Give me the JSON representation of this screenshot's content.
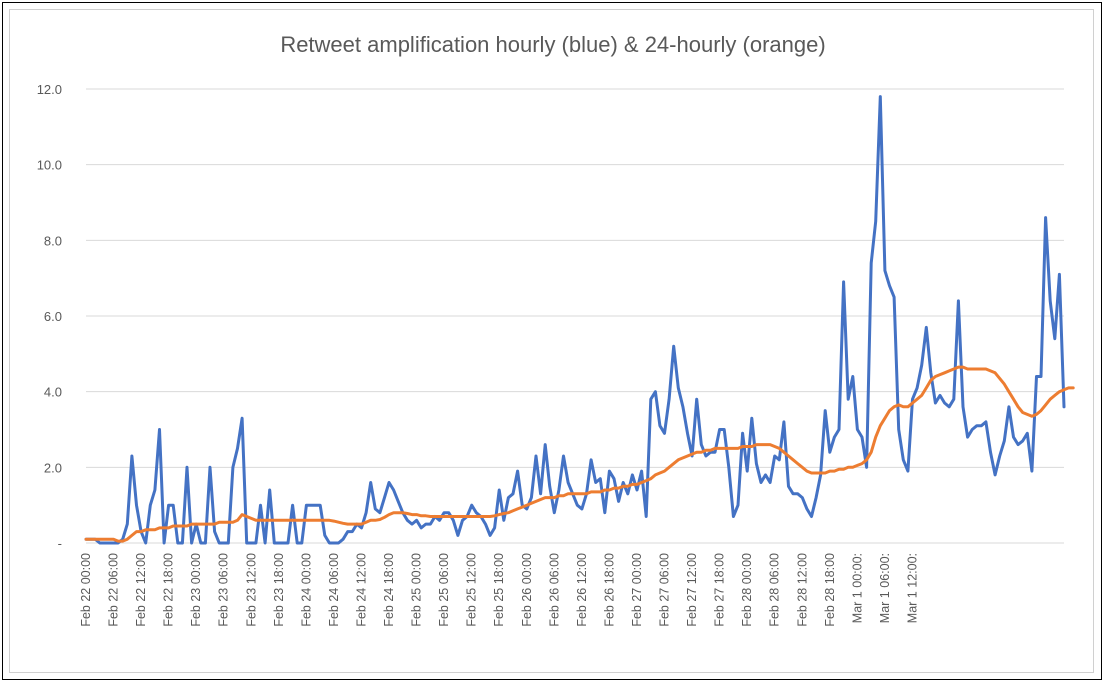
{
  "chart_data": {
    "type": "line",
    "title": "Retweet amplification hourly (blue) & 24-hourly (orange)",
    "xlabel": "",
    "ylabel": "",
    "ylim": [
      0,
      12
    ],
    "yticks": [
      0,
      2,
      4,
      6,
      8,
      10,
      12
    ],
    "ytick_labels": [
      "-",
      "2.0",
      "4.0",
      "6.0",
      "8.0",
      "10.0",
      "12.0"
    ],
    "grid": true,
    "x_tick_labels": [
      "Feb 22 00:00",
      "Feb 22 06:00",
      "Feb 22 12:00",
      "Feb 22 18:00",
      "Feb 23 00:00",
      "Feb 23 06:00",
      "Feb 23 12:00",
      "Feb 23 18:00",
      "Feb 24 00:00",
      "Feb 24 06:00",
      "Feb 24 12:00",
      "Feb 24 18:00",
      "Feb 25 00:00",
      "Feb 25 06:00",
      "Feb 25 12:00",
      "Feb 25 18:00",
      "Feb 26 00:00",
      "Feb 26 06:00",
      "Feb 26 12:00",
      "Feb 26 18:00",
      "Feb 27 00:00",
      "Feb 27 06:00",
      "Feb 27 12:00",
      "Feb 27 18:00",
      "Feb 28 00:00",
      "Feb 28 06:00",
      "Feb 28 12:00",
      "Feb 28 18:00",
      "Mar 1 00:00:",
      "Mar 1 06:00:",
      "Mar 1 12:00:"
    ],
    "x_start": "Feb 22 00:00",
    "x_step_hours": 1,
    "colors": {
      "hourly": "#4472c4",
      "rolling": "#ed7d31",
      "grid": "#d9d9d9"
    },
    "series": [
      {
        "key": "hourly",
        "values": [
          0.1,
          0.1,
          0.1,
          0.0,
          0.0,
          0.0,
          0.0,
          0.0,
          0.1,
          0.5,
          2.3,
          1.0,
          0.3,
          0.0,
          1.0,
          1.4,
          3.0,
          0.0,
          1.0,
          1.0,
          0.0,
          0.0,
          2.0,
          0.0,
          0.5,
          0.0,
          0.0,
          2.0,
          0.3,
          0.0,
          0.0,
          0.0,
          2.0,
          2.5,
          3.3,
          0.0,
          0.0,
          0.0,
          1.0,
          0.0,
          1.4,
          0.0,
          0.0,
          0.0,
          0.0,
          1.0,
          0.0,
          0.0,
          1.0,
          1.0,
          1.0,
          1.0,
          0.2,
          0.0,
          0.0,
          0.0,
          0.1,
          0.3,
          0.3,
          0.5,
          0.4,
          0.8,
          1.6,
          0.9,
          0.8,
          1.2,
          1.6,
          1.4,
          1.1,
          0.8,
          0.6,
          0.5,
          0.6,
          0.4,
          0.5,
          0.5,
          0.7,
          0.6,
          0.8,
          0.8,
          0.6,
          0.2,
          0.6,
          0.7,
          1.0,
          0.8,
          0.7,
          0.5,
          0.2,
          0.4,
          1.4,
          0.6,
          1.2,
          1.3,
          1.9,
          1.0,
          0.9,
          1.2,
          2.3,
          1.3,
          2.6,
          1.5,
          0.8,
          1.4,
          2.3,
          1.6,
          1.3,
          1.0,
          0.9,
          1.3,
          2.2,
          1.6,
          1.7,
          0.8,
          1.9,
          1.7,
          1.1,
          1.6,
          1.3,
          1.8,
          1.4,
          1.9,
          0.7,
          3.8,
          4.0,
          3.1,
          2.9,
          3.8,
          5.2,
          4.1,
          3.6,
          2.9,
          2.3,
          3.8,
          2.6,
          2.3,
          2.4,
          2.4,
          3.0,
          3.0,
          2.0,
          0.7,
          1.0,
          2.9,
          1.9,
          3.3,
          2.1,
          1.6,
          1.8,
          1.6,
          2.3,
          2.2,
          3.2,
          1.5,
          1.3,
          1.3,
          1.2,
          0.9,
          0.7,
          1.2,
          1.8,
          3.5,
          2.4,
          2.8,
          3.0,
          6.9,
          3.8,
          4.4,
          3.0,
          2.8,
          2.0,
          7.4,
          8.5,
          11.8,
          7.2,
          6.8,
          6.5,
          3.0,
          2.2,
          1.9,
          3.8,
          4.1,
          4.7,
          5.7,
          4.5,
          3.7,
          3.9,
          3.7,
          3.6,
          3.8,
          6.4,
          3.6,
          2.8,
          3.0,
          3.1,
          3.1,
          3.2,
          2.4,
          1.8,
          2.3,
          2.7,
          3.6,
          2.8,
          2.6,
          2.7,
          2.9,
          1.9,
          4.4,
          4.4,
          8.6,
          6.4,
          5.4,
          7.1,
          3.6
        ]
      },
      {
        "key": "rolling",
        "values": [
          0.1,
          0.1,
          0.1,
          0.1,
          0.1,
          0.1,
          0.1,
          0.05,
          0.05,
          0.1,
          0.2,
          0.3,
          0.3,
          0.35,
          0.35,
          0.35,
          0.4,
          0.4,
          0.4,
          0.45,
          0.45,
          0.45,
          0.45,
          0.5,
          0.5,
          0.5,
          0.5,
          0.5,
          0.5,
          0.55,
          0.55,
          0.55,
          0.55,
          0.6,
          0.75,
          0.7,
          0.65,
          0.6,
          0.6,
          0.6,
          0.6,
          0.6,
          0.6,
          0.6,
          0.6,
          0.6,
          0.6,
          0.6,
          0.6,
          0.6,
          0.6,
          0.6,
          0.6,
          0.6,
          0.58,
          0.55,
          0.52,
          0.5,
          0.5,
          0.5,
          0.5,
          0.55,
          0.6,
          0.6,
          0.62,
          0.68,
          0.75,
          0.8,
          0.8,
          0.8,
          0.78,
          0.75,
          0.75,
          0.72,
          0.72,
          0.7,
          0.7,
          0.7,
          0.7,
          0.7,
          0.7,
          0.7,
          0.7,
          0.7,
          0.7,
          0.7,
          0.7,
          0.7,
          0.7,
          0.72,
          0.75,
          0.78,
          0.8,
          0.85,
          0.9,
          0.95,
          1.0,
          1.05,
          1.1,
          1.15,
          1.2,
          1.2,
          1.2,
          1.25,
          1.25,
          1.3,
          1.3,
          1.3,
          1.3,
          1.3,
          1.35,
          1.35,
          1.35,
          1.4,
          1.4,
          1.45,
          1.45,
          1.5,
          1.5,
          1.55,
          1.55,
          1.6,
          1.65,
          1.7,
          1.8,
          1.85,
          1.9,
          2.0,
          2.1,
          2.2,
          2.25,
          2.3,
          2.35,
          2.4,
          2.4,
          2.45,
          2.45,
          2.5,
          2.5,
          2.5,
          2.5,
          2.5,
          2.5,
          2.55,
          2.55,
          2.55,
          2.6,
          2.6,
          2.6,
          2.6,
          2.55,
          2.5,
          2.4,
          2.3,
          2.2,
          2.1,
          2.0,
          1.9,
          1.85,
          1.85,
          1.85,
          1.85,
          1.9,
          1.9,
          1.95,
          1.95,
          2.0,
          2.0,
          2.05,
          2.1,
          2.2,
          2.4,
          2.8,
          3.1,
          3.3,
          3.5,
          3.6,
          3.65,
          3.6,
          3.6,
          3.7,
          3.8,
          3.9,
          4.1,
          4.3,
          4.4,
          4.45,
          4.5,
          4.55,
          4.6,
          4.65,
          4.65,
          4.6,
          4.6,
          4.6,
          4.6,
          4.6,
          4.55,
          4.5,
          4.35,
          4.2,
          4.0,
          3.8,
          3.6,
          3.45,
          3.4,
          3.35,
          3.4,
          3.5,
          3.65,
          3.8,
          3.9,
          4.0,
          4.05,
          4.1,
          4.1
        ]
      }
    ]
  }
}
